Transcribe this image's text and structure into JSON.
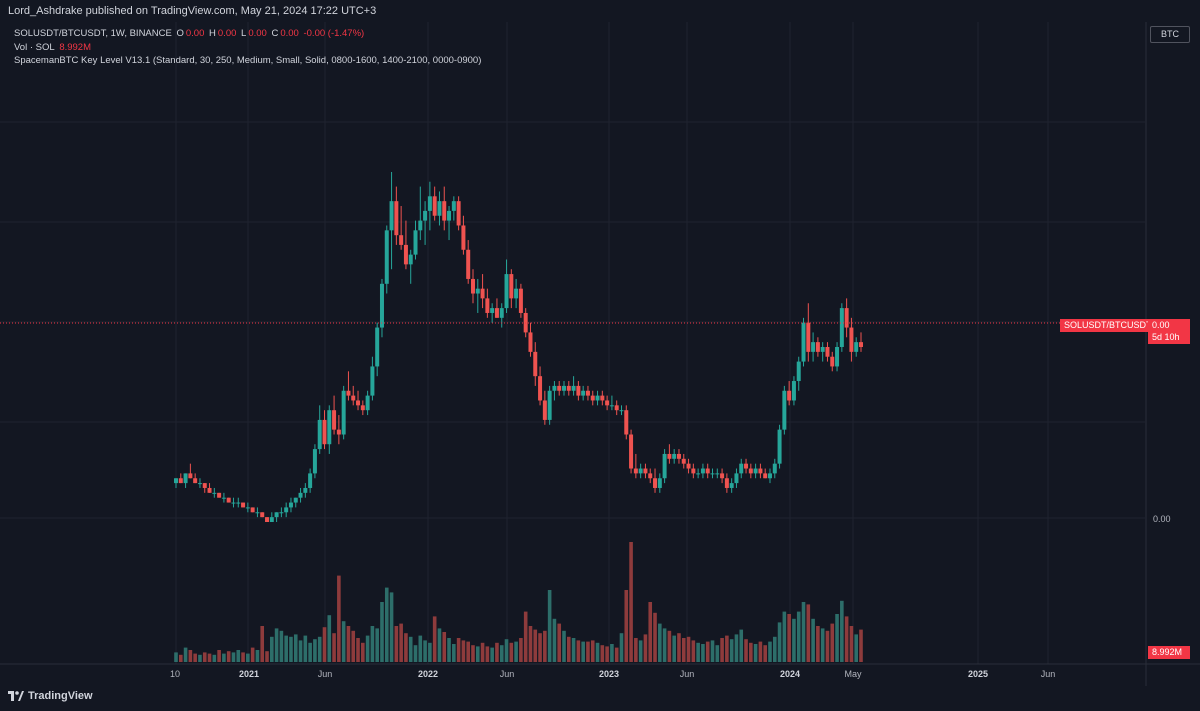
{
  "header": {
    "publisher": "Lord_Ashdrake published on TradingView.com, May 21, 2024 17:22 UTC+3"
  },
  "legend": {
    "symbol": "SOLUSDT/BTCUSDT, 1W, BINANCE",
    "o_label": "O",
    "o_value": "0.00",
    "h_label": "H",
    "h_value": "0.00",
    "l_label": "L",
    "l_value": "0.00",
    "c_label": "C",
    "c_value": "0.00",
    "change": "-0.00 (-1.47%)",
    "vol_label": "Vol · SOL",
    "vol_value": "8.992M",
    "indicator": "SpacemanBTC Key Level V13.1 (Standard, 30, 250, Medium, Small, Solid, 0800-1600, 1400-2100, 0000-0900)"
  },
  "scale_badge": "BTC",
  "price_tag": {
    "symbol": "SOLUSDT/BTCUSDT",
    "price": "0.00",
    "countdown": "5d 10h"
  },
  "right_axis": {
    "zero_label": "0.00",
    "volume_label": "8.992M"
  },
  "x_axis": {
    "ticks": [
      {
        "label": "10",
        "year": false
      },
      {
        "label": "2021",
        "year": true
      },
      {
        "label": "Jun",
        "year": false
      },
      {
        "label": "2022",
        "year": true
      },
      {
        "label": "Jun",
        "year": false
      },
      {
        "label": "2023",
        "year": true
      },
      {
        "label": "Jun",
        "year": false
      },
      {
        "label": "2024",
        "year": true
      },
      {
        "label": "May",
        "year": false
      },
      {
        "label": "2025",
        "year": true
      },
      {
        "label": "Jun",
        "year": false
      }
    ]
  },
  "branding": {
    "name": "TradingView"
  },
  "colors": {
    "up": "#26a69a",
    "down": "#ef5350",
    "up_volume": "#2d6e6a",
    "down_volume": "#8e3b3c",
    "background": "#131722",
    "grid": "#1f2330"
  },
  "chart_data": {
    "type": "candlestick",
    "title": "SOLUSDT/BTCUSDT, 1W, BINANCE",
    "price_unit": "BTC",
    "y_scale": "relative price level (0 = chart bottom, 1 = chart top)",
    "volume_max": 1.0,
    "candles": [
      [
        0.36,
        0.37,
        0.35,
        0.37,
        0.08
      ],
      [
        0.37,
        0.38,
        0.36,
        0.36,
        0.06
      ],
      [
        0.36,
        0.38,
        0.35,
        0.38,
        0.12
      ],
      [
        0.38,
        0.4,
        0.37,
        0.37,
        0.1
      ],
      [
        0.37,
        0.38,
        0.36,
        0.36,
        0.07
      ],
      [
        0.36,
        0.37,
        0.35,
        0.36,
        0.06
      ],
      [
        0.36,
        0.36,
        0.34,
        0.35,
        0.08
      ],
      [
        0.35,
        0.36,
        0.34,
        0.34,
        0.07
      ],
      [
        0.34,
        0.35,
        0.33,
        0.34,
        0.06
      ],
      [
        0.34,
        0.34,
        0.33,
        0.33,
        0.1
      ],
      [
        0.33,
        0.34,
        0.32,
        0.33,
        0.07
      ],
      [
        0.33,
        0.33,
        0.32,
        0.32,
        0.09
      ],
      [
        0.32,
        0.33,
        0.31,
        0.32,
        0.08
      ],
      [
        0.32,
        0.33,
        0.31,
        0.32,
        0.1
      ],
      [
        0.32,
        0.32,
        0.31,
        0.31,
        0.08
      ],
      [
        0.31,
        0.32,
        0.3,
        0.31,
        0.07
      ],
      [
        0.31,
        0.31,
        0.3,
        0.3,
        0.12
      ],
      [
        0.3,
        0.31,
        0.29,
        0.3,
        0.1
      ],
      [
        0.3,
        0.3,
        0.29,
        0.29,
        0.3
      ],
      [
        0.29,
        0.29,
        0.28,
        0.28,
        0.09
      ],
      [
        0.28,
        0.3,
        0.28,
        0.29,
        0.21
      ],
      [
        0.29,
        0.3,
        0.28,
        0.3,
        0.28
      ],
      [
        0.3,
        0.31,
        0.29,
        0.3,
        0.26
      ],
      [
        0.3,
        0.32,
        0.29,
        0.31,
        0.22
      ],
      [
        0.31,
        0.33,
        0.3,
        0.32,
        0.21
      ],
      [
        0.32,
        0.33,
        0.31,
        0.33,
        0.23
      ],
      [
        0.33,
        0.35,
        0.32,
        0.34,
        0.18
      ],
      [
        0.34,
        0.36,
        0.33,
        0.35,
        0.22
      ],
      [
        0.35,
        0.39,
        0.34,
        0.38,
        0.16
      ],
      [
        0.38,
        0.44,
        0.37,
        0.43,
        0.19
      ],
      [
        0.43,
        0.52,
        0.42,
        0.49,
        0.21
      ],
      [
        0.49,
        0.51,
        0.43,
        0.44,
        0.29
      ],
      [
        0.44,
        0.52,
        0.42,
        0.51,
        0.39
      ],
      [
        0.51,
        0.54,
        0.46,
        0.47,
        0.24
      ],
      [
        0.47,
        0.5,
        0.44,
        0.46,
        0.72
      ],
      [
        0.46,
        0.56,
        0.45,
        0.55,
        0.34
      ],
      [
        0.55,
        0.59,
        0.53,
        0.54,
        0.3
      ],
      [
        0.54,
        0.56,
        0.52,
        0.53,
        0.26
      ],
      [
        0.53,
        0.55,
        0.51,
        0.52,
        0.2
      ],
      [
        0.52,
        0.53,
        0.5,
        0.51,
        0.16
      ],
      [
        0.51,
        0.55,
        0.5,
        0.54,
        0.22
      ],
      [
        0.54,
        0.62,
        0.53,
        0.6,
        0.3
      ],
      [
        0.6,
        0.69,
        0.58,
        0.68,
        0.28
      ],
      [
        0.68,
        0.78,
        0.66,
        0.77,
        0.5
      ],
      [
        0.77,
        0.89,
        0.75,
        0.88,
        0.62
      ],
      [
        0.88,
        1.0,
        0.8,
        0.94,
        0.58
      ],
      [
        0.94,
        0.97,
        0.85,
        0.87,
        0.3
      ],
      [
        0.87,
        0.93,
        0.84,
        0.85,
        0.32
      ],
      [
        0.85,
        0.9,
        0.8,
        0.81,
        0.24
      ],
      [
        0.81,
        0.84,
        0.77,
        0.83,
        0.21
      ],
      [
        0.83,
        0.9,
        0.82,
        0.88,
        0.14
      ],
      [
        0.88,
        0.97,
        0.86,
        0.9,
        0.22
      ],
      [
        0.9,
        0.94,
        0.85,
        0.92,
        0.18
      ],
      [
        0.92,
        0.98,
        0.88,
        0.95,
        0.16
      ],
      [
        0.95,
        0.97,
        0.9,
        0.91,
        0.38
      ],
      [
        0.91,
        0.96,
        0.89,
        0.94,
        0.28
      ],
      [
        0.94,
        0.97,
        0.88,
        0.9,
        0.25
      ],
      [
        0.9,
        0.93,
        0.86,
        0.92,
        0.2
      ],
      [
        0.92,
        0.95,
        0.9,
        0.94,
        0.15
      ],
      [
        0.94,
        0.95,
        0.88,
        0.89,
        0.2
      ],
      [
        0.89,
        0.91,
        0.83,
        0.84,
        0.18
      ],
      [
        0.84,
        0.86,
        0.77,
        0.78,
        0.17
      ],
      [
        0.78,
        0.8,
        0.73,
        0.75,
        0.14
      ],
      [
        0.75,
        0.78,
        0.71,
        0.76,
        0.13
      ],
      [
        0.76,
        0.79,
        0.72,
        0.74,
        0.16
      ],
      [
        0.74,
        0.76,
        0.7,
        0.71,
        0.13
      ],
      [
        0.71,
        0.73,
        0.69,
        0.72,
        0.12
      ],
      [
        0.72,
        0.74,
        0.7,
        0.7,
        0.16
      ],
      [
        0.7,
        0.73,
        0.68,
        0.72,
        0.14
      ],
      [
        0.72,
        0.82,
        0.71,
        0.79,
        0.19
      ],
      [
        0.79,
        0.8,
        0.72,
        0.74,
        0.16
      ],
      [
        0.74,
        0.78,
        0.72,
        0.76,
        0.17
      ],
      [
        0.76,
        0.77,
        0.7,
        0.71,
        0.2
      ],
      [
        0.71,
        0.72,
        0.66,
        0.67,
        0.42
      ],
      [
        0.67,
        0.69,
        0.62,
        0.63,
        0.3
      ],
      [
        0.63,
        0.65,
        0.56,
        0.58,
        0.27
      ],
      [
        0.58,
        0.6,
        0.52,
        0.53,
        0.24
      ],
      [
        0.53,
        0.55,
        0.48,
        0.49,
        0.26
      ],
      [
        0.49,
        0.56,
        0.48,
        0.55,
        0.6
      ],
      [
        0.55,
        0.57,
        0.53,
        0.56,
        0.36
      ],
      [
        0.56,
        0.57,
        0.54,
        0.55,
        0.32
      ],
      [
        0.55,
        0.57,
        0.54,
        0.56,
        0.26
      ],
      [
        0.56,
        0.57,
        0.54,
        0.55,
        0.21
      ],
      [
        0.55,
        0.58,
        0.54,
        0.56,
        0.2
      ],
      [
        0.56,
        0.57,
        0.53,
        0.54,
        0.18
      ],
      [
        0.54,
        0.56,
        0.53,
        0.55,
        0.17
      ],
      [
        0.55,
        0.56,
        0.53,
        0.54,
        0.17
      ],
      [
        0.54,
        0.55,
        0.52,
        0.53,
        0.18
      ],
      [
        0.53,
        0.55,
        0.52,
        0.54,
        0.16
      ],
      [
        0.54,
        0.55,
        0.52,
        0.53,
        0.14
      ],
      [
        0.53,
        0.54,
        0.51,
        0.52,
        0.13
      ],
      [
        0.52,
        0.54,
        0.51,
        0.52,
        0.15
      ],
      [
        0.52,
        0.53,
        0.5,
        0.51,
        0.12
      ],
      [
        0.51,
        0.52,
        0.5,
        0.51,
        0.24
      ],
      [
        0.51,
        0.52,
        0.45,
        0.46,
        0.6
      ],
      [
        0.46,
        0.47,
        0.38,
        0.39,
        1.0
      ],
      [
        0.39,
        0.42,
        0.37,
        0.38,
        0.2
      ],
      [
        0.38,
        0.4,
        0.37,
        0.39,
        0.18
      ],
      [
        0.39,
        0.4,
        0.37,
        0.38,
        0.23
      ],
      [
        0.38,
        0.39,
        0.36,
        0.37,
        0.5
      ],
      [
        0.37,
        0.39,
        0.34,
        0.35,
        0.41
      ],
      [
        0.35,
        0.38,
        0.34,
        0.37,
        0.32
      ],
      [
        0.37,
        0.43,
        0.36,
        0.42,
        0.28
      ],
      [
        0.42,
        0.44,
        0.4,
        0.41,
        0.26
      ],
      [
        0.41,
        0.43,
        0.4,
        0.42,
        0.22
      ],
      [
        0.42,
        0.43,
        0.4,
        0.41,
        0.24
      ],
      [
        0.41,
        0.42,
        0.39,
        0.4,
        0.2
      ],
      [
        0.4,
        0.41,
        0.38,
        0.39,
        0.21
      ],
      [
        0.39,
        0.4,
        0.37,
        0.38,
        0.18
      ],
      [
        0.38,
        0.39,
        0.37,
        0.38,
        0.16
      ],
      [
        0.38,
        0.4,
        0.37,
        0.39,
        0.15
      ],
      [
        0.39,
        0.4,
        0.37,
        0.38,
        0.17
      ],
      [
        0.38,
        0.39,
        0.37,
        0.38,
        0.18
      ],
      [
        0.38,
        0.39,
        0.37,
        0.38,
        0.14
      ],
      [
        0.38,
        0.39,
        0.36,
        0.37,
        0.2
      ],
      [
        0.37,
        0.38,
        0.34,
        0.35,
        0.22
      ],
      [
        0.35,
        0.37,
        0.34,
        0.36,
        0.19
      ],
      [
        0.36,
        0.39,
        0.35,
        0.38,
        0.23
      ],
      [
        0.38,
        0.41,
        0.37,
        0.4,
        0.27
      ],
      [
        0.4,
        0.41,
        0.38,
        0.39,
        0.19
      ],
      [
        0.39,
        0.4,
        0.37,
        0.38,
        0.16
      ],
      [
        0.38,
        0.4,
        0.37,
        0.39,
        0.15
      ],
      [
        0.39,
        0.4,
        0.37,
        0.38,
        0.17
      ],
      [
        0.38,
        0.39,
        0.37,
        0.37,
        0.14
      ],
      [
        0.37,
        0.39,
        0.36,
        0.38,
        0.17
      ],
      [
        0.38,
        0.41,
        0.37,
        0.4,
        0.21
      ],
      [
        0.4,
        0.48,
        0.39,
        0.47,
        0.33
      ],
      [
        0.47,
        0.56,
        0.46,
        0.55,
        0.42
      ],
      [
        0.55,
        0.57,
        0.52,
        0.53,
        0.4
      ],
      [
        0.53,
        0.58,
        0.52,
        0.57,
        0.36
      ],
      [
        0.57,
        0.62,
        0.55,
        0.61,
        0.42
      ],
      [
        0.61,
        0.7,
        0.6,
        0.69,
        0.5
      ],
      [
        0.69,
        0.73,
        0.61,
        0.63,
        0.48
      ],
      [
        0.63,
        0.67,
        0.61,
        0.65,
        0.36
      ],
      [
        0.65,
        0.66,
        0.62,
        0.63,
        0.3
      ],
      [
        0.63,
        0.65,
        0.61,
        0.64,
        0.28
      ],
      [
        0.64,
        0.65,
        0.61,
        0.62,
        0.26
      ],
      [
        0.62,
        0.63,
        0.59,
        0.6,
        0.32
      ],
      [
        0.6,
        0.65,
        0.59,
        0.64,
        0.4
      ],
      [
        0.64,
        0.73,
        0.63,
        0.72,
        0.51
      ],
      [
        0.72,
        0.74,
        0.66,
        0.68,
        0.38
      ],
      [
        0.68,
        0.7,
        0.61,
        0.63,
        0.3
      ],
      [
        0.63,
        0.66,
        0.62,
        0.65,
        0.23
      ],
      [
        0.65,
        0.67,
        0.63,
        0.64,
        0.27
      ]
    ]
  }
}
